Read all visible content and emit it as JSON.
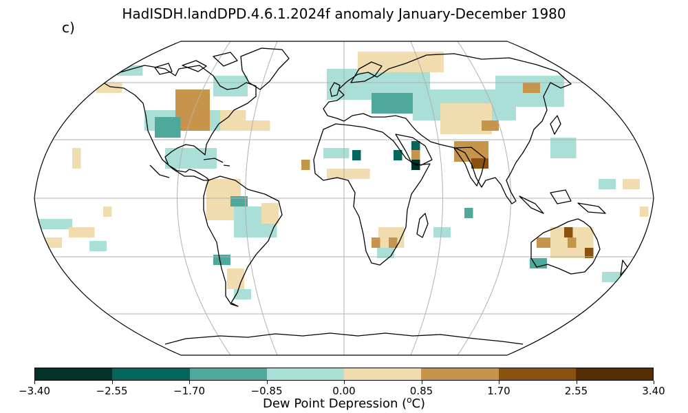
{
  "title": "HadISDH.landDPD.4.6.1.2024f anomaly January-December 1980",
  "panel_label": "c)",
  "colorbar": {
    "label": "Dew Point Depression (",
    "label_sup": "o",
    "label_unit": "C)",
    "ticks": [
      "−3.40",
      "−2.55",
      "−1.70",
      "−0.85",
      "0.00",
      "0.85",
      "1.70",
      "2.55",
      "3.40"
    ],
    "colors": [
      "#01332b",
      "#06665e",
      "#4ea99c",
      "#aadfd7",
      "#f0dcae",
      "#c7944b",
      "#8b520f",
      "#532e07"
    ]
  },
  "colors": {
    "coast": "#000000",
    "grid": "#b0b0b0"
  }
}
